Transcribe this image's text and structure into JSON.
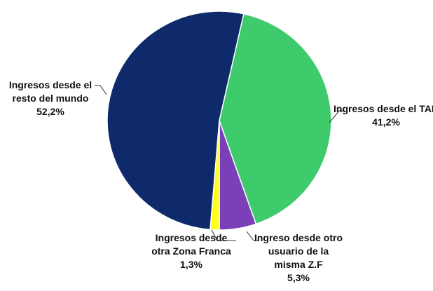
{
  "chart_data": {
    "type": "pie",
    "categories": [
      "Ingresos desde el TAN",
      "Ingreso desde otro usuario de la misma Z.F",
      "Ingresos desde otra Zona Franca",
      "Ingresos desde el resto del mundo"
    ],
    "values": [
      41.2,
      5.3,
      1.3,
      52.2
    ],
    "value_labels": [
      "41,2%",
      "5,3%",
      "1,3%",
      "52,2%"
    ],
    "colors": [
      "#3ecb6c",
      "#7b3fb8",
      "#ffff1a",
      "#0e2a6a"
    ]
  }
}
